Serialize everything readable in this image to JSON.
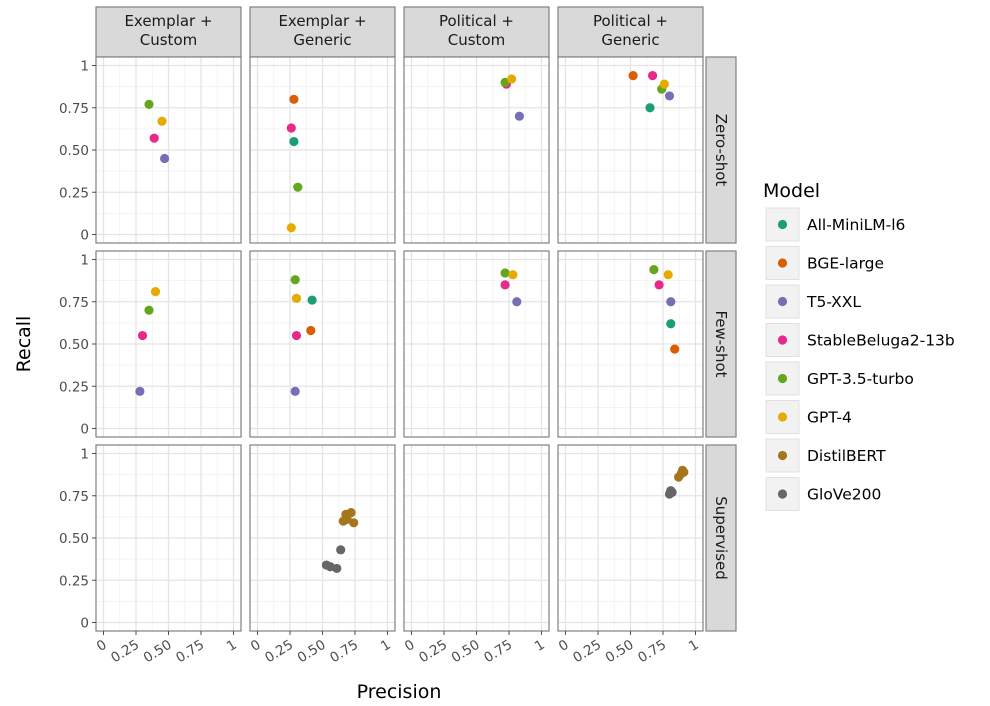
{
  "chart_data": {
    "type": "scatter",
    "xlabel": "Precision",
    "ylabel": "Recall",
    "xlim": [
      0,
      1
    ],
    "ylim": [
      0,
      1
    ],
    "x_ticks": [
      "0",
      "0.25",
      "0.50",
      "0.75",
      "1"
    ],
    "y_ticks": [
      "0",
      "0.25",
      "0.50",
      "0.75",
      "1"
    ],
    "grid": true,
    "legend_title": "Model",
    "legend_position": "right",
    "columns": [
      "Exemplar + Custom",
      "Exemplar + Generic",
      "Political + Custom",
      "Political + Generic"
    ],
    "rows": [
      "Zero-shot",
      "Few-shot",
      "Supervised"
    ],
    "series": [
      {
        "name": "All-MiniLM-l6",
        "color": "#1b9e77",
        "points": [
          {
            "row": 0,
            "col": 1,
            "x": 0.28,
            "y": 0.55
          },
          {
            "row": 0,
            "col": 3,
            "x": 0.65,
            "y": 0.75
          },
          {
            "row": 1,
            "col": 1,
            "x": 0.42,
            "y": 0.76
          },
          {
            "row": 1,
            "col": 3,
            "x": 0.81,
            "y": 0.62
          }
        ]
      },
      {
        "name": "BGE-large",
        "color": "#d95f02",
        "points": [
          {
            "row": 0,
            "col": 1,
            "x": 0.28,
            "y": 0.8
          },
          {
            "row": 0,
            "col": 3,
            "x": 0.52,
            "y": 0.94
          },
          {
            "row": 1,
            "col": 1,
            "x": 0.41,
            "y": 0.58
          },
          {
            "row": 1,
            "col": 3,
            "x": 0.84,
            "y": 0.47
          }
        ]
      },
      {
        "name": "T5-XXL",
        "color": "#7570b3",
        "points": [
          {
            "row": 0,
            "col": 0,
            "x": 0.47,
            "y": 0.45
          },
          {
            "row": 0,
            "col": 2,
            "x": 0.83,
            "y": 0.7
          },
          {
            "row": 0,
            "col": 3,
            "x": 0.8,
            "y": 0.82
          },
          {
            "row": 1,
            "col": 0,
            "x": 0.28,
            "y": 0.22
          },
          {
            "row": 1,
            "col": 1,
            "x": 0.29,
            "y": 0.22
          },
          {
            "row": 1,
            "col": 2,
            "x": 0.81,
            "y": 0.75
          },
          {
            "row": 1,
            "col": 3,
            "x": 0.81,
            "y": 0.75
          }
        ]
      },
      {
        "name": "StableBeluga2-13b",
        "color": "#e7298a",
        "points": [
          {
            "row": 0,
            "col": 0,
            "x": 0.39,
            "y": 0.57
          },
          {
            "row": 0,
            "col": 1,
            "x": 0.26,
            "y": 0.63
          },
          {
            "row": 0,
            "col": 2,
            "x": 0.73,
            "y": 0.89
          },
          {
            "row": 0,
            "col": 3,
            "x": 0.67,
            "y": 0.94
          },
          {
            "row": 1,
            "col": 0,
            "x": 0.3,
            "y": 0.55
          },
          {
            "row": 1,
            "col": 1,
            "x": 0.3,
            "y": 0.55
          },
          {
            "row": 1,
            "col": 2,
            "x": 0.72,
            "y": 0.85
          },
          {
            "row": 1,
            "col": 3,
            "x": 0.72,
            "y": 0.85
          }
        ]
      },
      {
        "name": "GPT-3.5-turbo",
        "color": "#66a61e",
        "points": [
          {
            "row": 0,
            "col": 0,
            "x": 0.35,
            "y": 0.77
          },
          {
            "row": 0,
            "col": 1,
            "x": 0.31,
            "y": 0.28
          },
          {
            "row": 0,
            "col": 2,
            "x": 0.72,
            "y": 0.9
          },
          {
            "row": 0,
            "col": 3,
            "x": 0.74,
            "y": 0.86
          },
          {
            "row": 1,
            "col": 0,
            "x": 0.35,
            "y": 0.7
          },
          {
            "row": 1,
            "col": 1,
            "x": 0.29,
            "y": 0.88
          },
          {
            "row": 1,
            "col": 2,
            "x": 0.72,
            "y": 0.92
          },
          {
            "row": 1,
            "col": 3,
            "x": 0.68,
            "y": 0.94
          }
        ]
      },
      {
        "name": "GPT-4",
        "color": "#e6ab02",
        "points": [
          {
            "row": 0,
            "col": 0,
            "x": 0.45,
            "y": 0.67
          },
          {
            "row": 0,
            "col": 1,
            "x": 0.26,
            "y": 0.04
          },
          {
            "row": 0,
            "col": 2,
            "x": 0.77,
            "y": 0.92
          },
          {
            "row": 0,
            "col": 3,
            "x": 0.76,
            "y": 0.89
          },
          {
            "row": 1,
            "col": 0,
            "x": 0.4,
            "y": 0.81
          },
          {
            "row": 1,
            "col": 1,
            "x": 0.3,
            "y": 0.77
          },
          {
            "row": 1,
            "col": 2,
            "x": 0.78,
            "y": 0.91
          },
          {
            "row": 1,
            "col": 3,
            "x": 0.79,
            "y": 0.91
          }
        ]
      },
      {
        "name": "DistilBERT",
        "color": "#a6761d",
        "points": [
          {
            "row": 2,
            "col": 1,
            "x": 0.66,
            "y": 0.6
          },
          {
            "row": 2,
            "col": 1,
            "x": 0.68,
            "y": 0.64
          },
          {
            "row": 2,
            "col": 1,
            "x": 0.72,
            "y": 0.65
          },
          {
            "row": 2,
            "col": 1,
            "x": 0.74,
            "y": 0.59
          },
          {
            "row": 2,
            "col": 1,
            "x": 0.69,
            "y": 0.61
          },
          {
            "row": 2,
            "col": 3,
            "x": 0.87,
            "y": 0.86
          },
          {
            "row": 2,
            "col": 3,
            "x": 0.89,
            "y": 0.88
          },
          {
            "row": 2,
            "col": 3,
            "x": 0.9,
            "y": 0.9
          },
          {
            "row": 2,
            "col": 3,
            "x": 0.91,
            "y": 0.89
          }
        ]
      },
      {
        "name": "GloVe200",
        "color": "#666666",
        "points": [
          {
            "row": 2,
            "col": 1,
            "x": 0.53,
            "y": 0.34
          },
          {
            "row": 2,
            "col": 1,
            "x": 0.56,
            "y": 0.33
          },
          {
            "row": 2,
            "col": 1,
            "x": 0.61,
            "y": 0.32
          },
          {
            "row": 2,
            "col": 1,
            "x": 0.64,
            "y": 0.43
          },
          {
            "row": 2,
            "col": 3,
            "x": 0.8,
            "y": 0.76
          },
          {
            "row": 2,
            "col": 3,
            "x": 0.81,
            "y": 0.78
          },
          {
            "row": 2,
            "col": 3,
            "x": 0.82,
            "y": 0.77
          }
        ]
      }
    ]
  }
}
